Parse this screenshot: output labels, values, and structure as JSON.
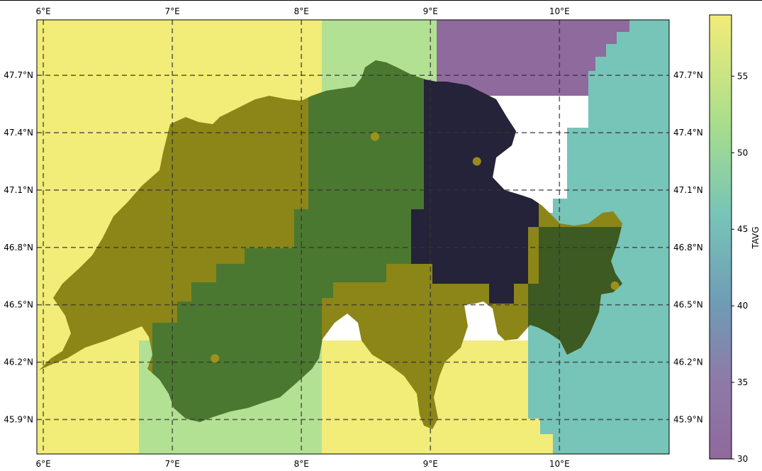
{
  "map": {
    "lon_range": [
      5.95,
      10.85
    ],
    "lat_range": [
      45.72,
      47.99
    ],
    "lon_ticks": [
      "6°E",
      "7°E",
      "8°E",
      "9°E",
      "10°E"
    ],
    "lon_values": [
      6,
      7,
      8,
      9,
      10
    ],
    "lat_ticks": [
      "47.7°N",
      "47.4°N",
      "47.1°N",
      "46.8°N",
      "46.5°N",
      "46.2°N",
      "45.9°N"
    ],
    "lat_values": [
      47.7,
      47.4,
      47.1,
      46.8,
      46.5,
      46.2,
      45.9
    ],
    "grid": "dashed",
    "stations": [
      {
        "lon": 8.57,
        "lat": 47.38
      },
      {
        "lon": 9.36,
        "lat": 47.25
      },
      {
        "lon": 7.33,
        "lat": 46.22
      },
      {
        "lon": 10.43,
        "lat": 46.6
      }
    ]
  },
  "colorbar": {
    "label": "TAVG",
    "ticks": [
      "55",
      "50",
      "45",
      "40",
      "35",
      "30"
    ],
    "tick_values": [
      55,
      50,
      45,
      40,
      35,
      30
    ],
    "range": [
      30,
      59
    ]
  },
  "colors": {
    "yellow": "#f2ec78",
    "lightgreen": "#b3e194",
    "purple": "#8f6a9c",
    "teal": "#77c4b8",
    "olive": "#8c8518",
    "green": "#4b7830",
    "dark": "#242339",
    "station": "#a6951a"
  }
}
